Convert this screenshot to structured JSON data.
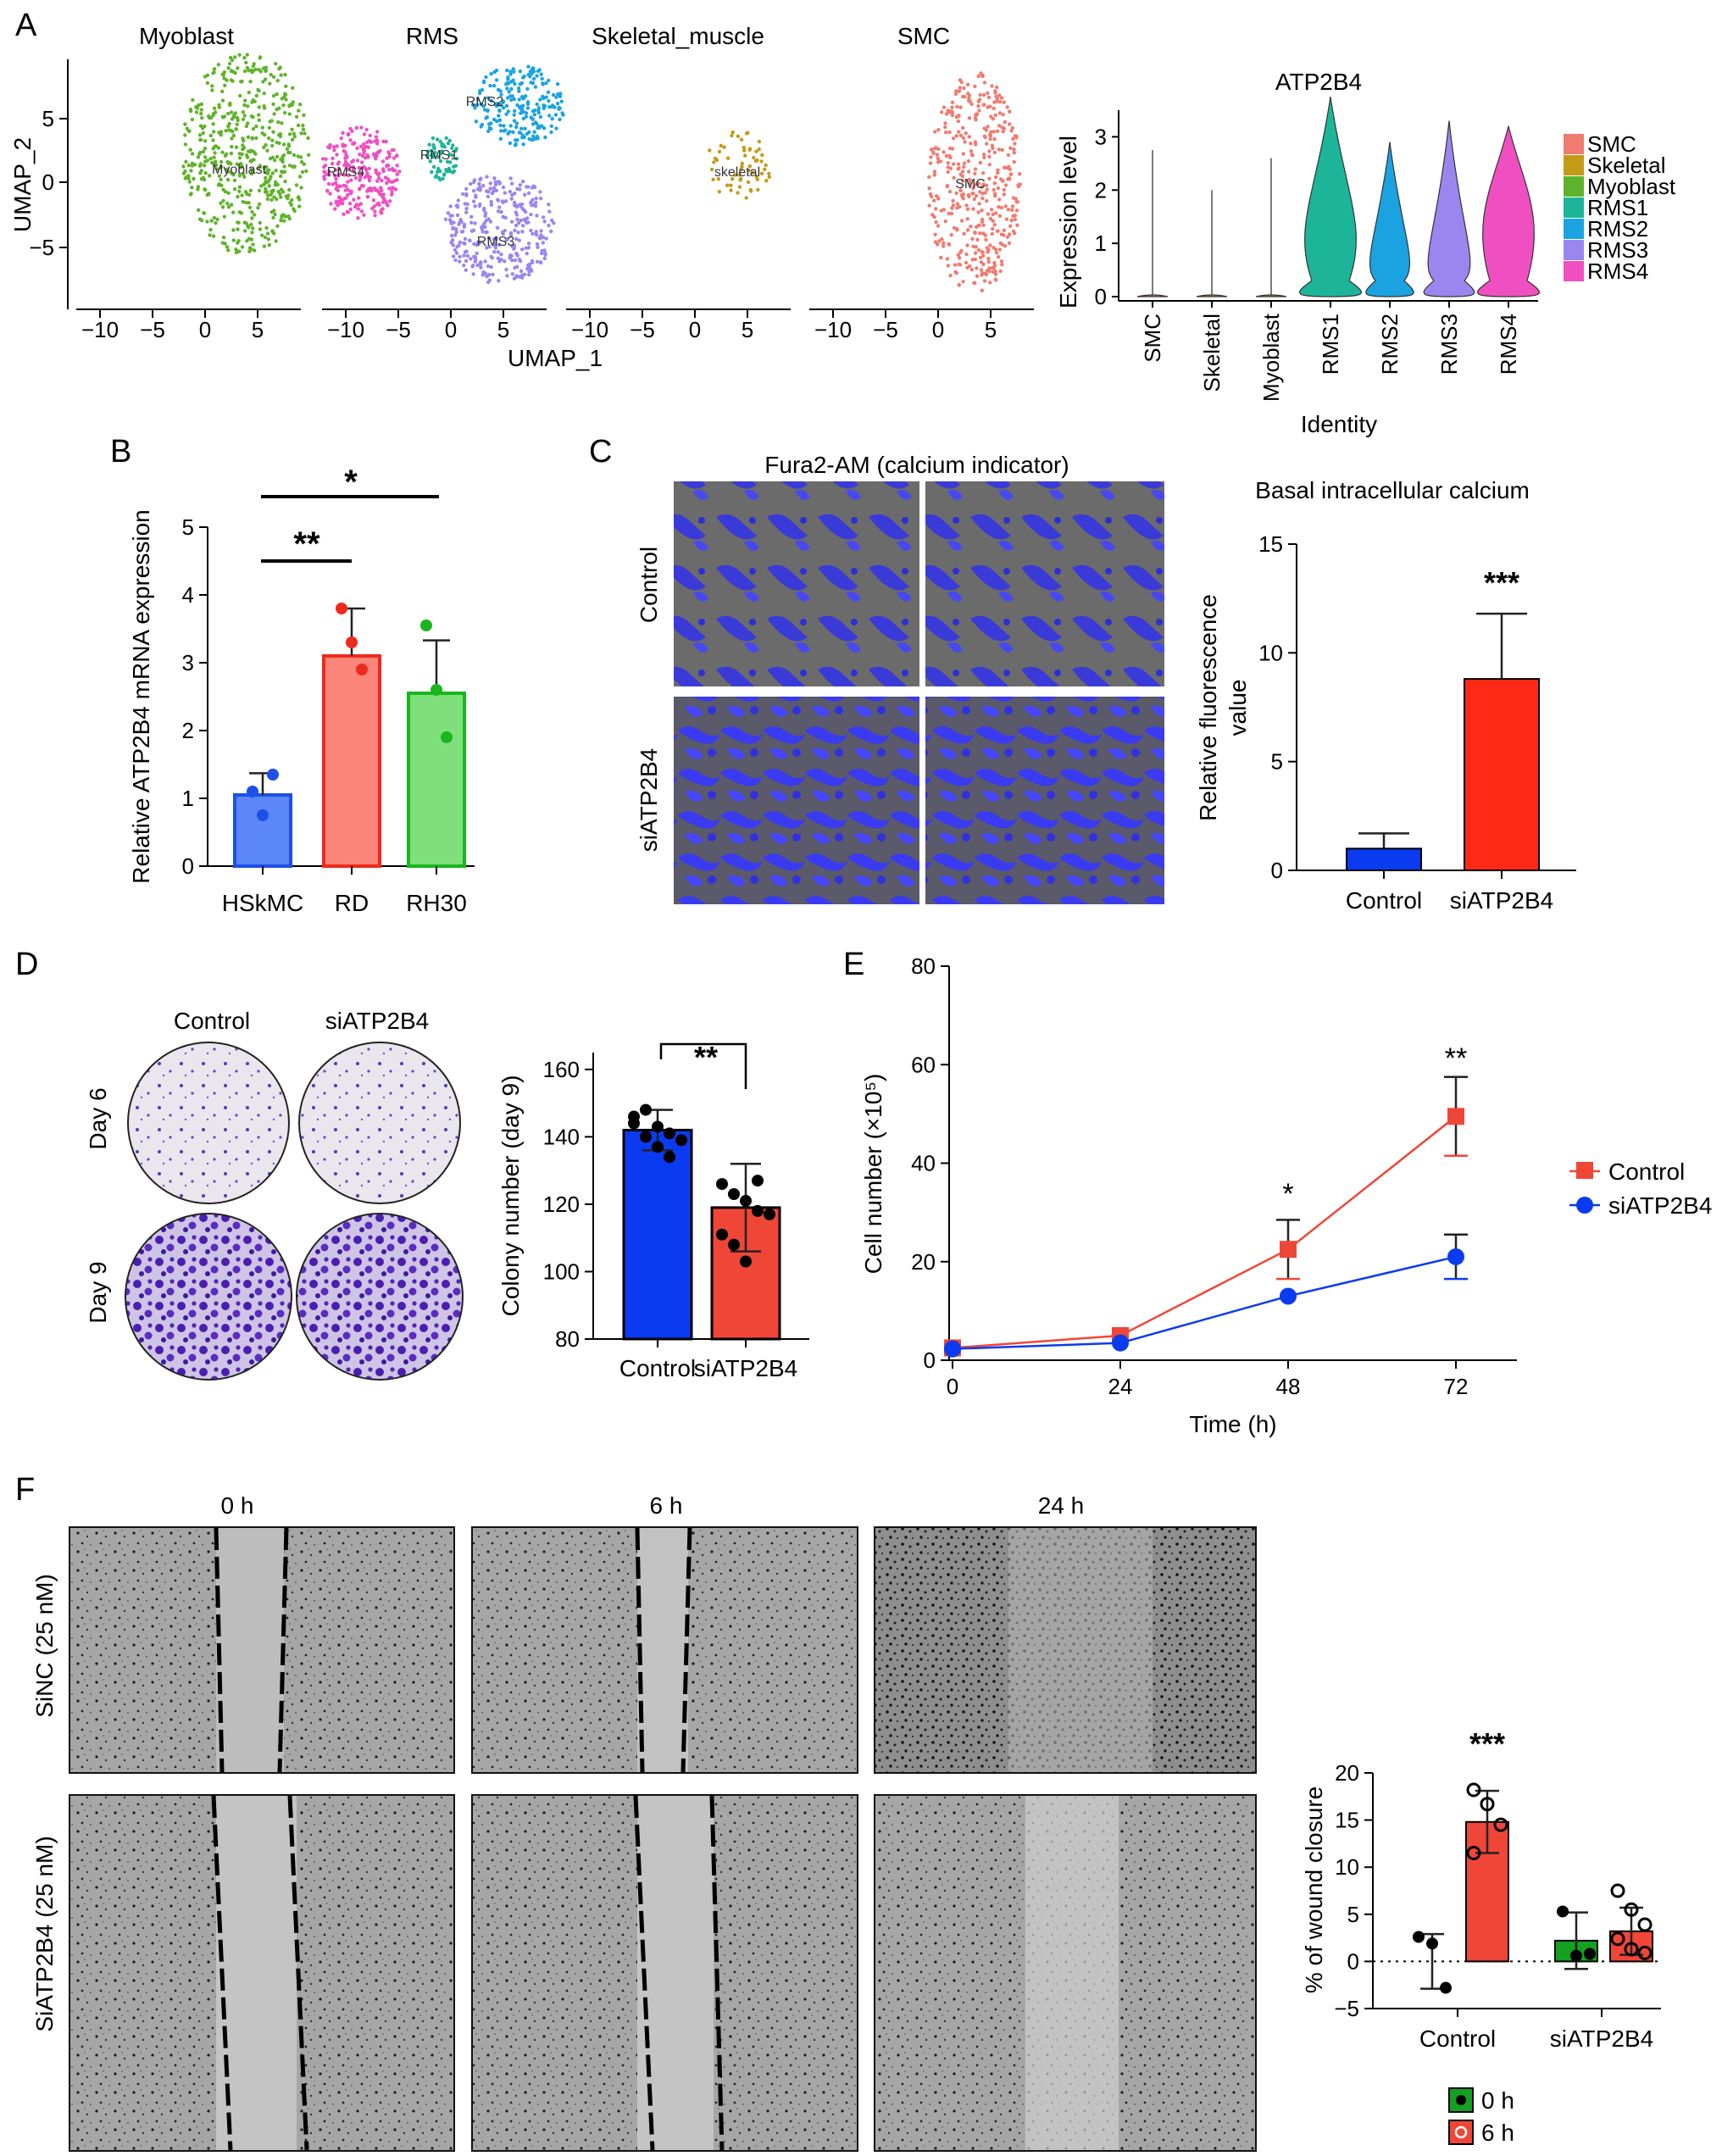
{
  "panel_letters": [
    "A",
    "B",
    "C",
    "D",
    "E",
    "F"
  ],
  "colors": {
    "Myoblast": "#5fb32a",
    "SMC": "#f07b70",
    "Skeletal": "#c49a17",
    "RMS1": "#1cb59a",
    "RMS2": "#1aa3e0",
    "RMS3": "#9a86ee",
    "RMS4": "#f04fc2",
    "blue": "#0a3bf0",
    "red": "#f04637",
    "bar_red": "#ff2a16",
    "green_bar": "#14a020",
    "hskmc": "#5b87f7",
    "rd": "#fa8578",
    "rh30": "#7fe07b",
    "fluor_blue": "#2222ee"
  },
  "panelA": {
    "umap": {
      "titles": [
        "Myoblast",
        "RMS",
        "Skeletal_muscle",
        "SMC"
      ],
      "cluster_labels": [
        "Myoblast",
        "RMS4",
        "RMS2",
        "RMS1",
        "RMS3",
        "skeletal",
        "SMC"
      ],
      "xlabel": "UMAP_1",
      "ylabel": "UMAP_2",
      "xticks": [
        "−10",
        "−5",
        "0",
        "5"
      ],
      "yticks": [
        "5",
        "0",
        "−5"
      ]
    },
    "violin_title": "ATP2B4",
    "violin_ylabel": "Expression level",
    "violin_xlabel": "Identity",
    "violin_yticks": [
      "3",
      "2",
      "1",
      "0"
    ],
    "violin_categories": [
      "SMC",
      "Skeletal",
      "Myoblast",
      "RMS1",
      "RMS2",
      "RMS3",
      "RMS4"
    ],
    "legend": [
      "SMC",
      "Skeletal",
      "Myoblast",
      "RMS1",
      "RMS2",
      "RMS3",
      "RMS4"
    ]
  },
  "panelC": {
    "image_title": "Fura2-AM (calcium indicator)",
    "row_labels": [
      "Control",
      "siATP2B4"
    ],
    "chart_title": "Basal intracellular calcium"
  },
  "panelD": {
    "col_labels": [
      "Control",
      "siATP2B4"
    ],
    "row_labels": [
      "Day 6",
      "Day 9"
    ]
  },
  "panelF": {
    "col_labels": [
      "0 h",
      "6 h",
      "24 h"
    ],
    "row_labels": [
      "SiNC (25 nM)",
      "SiATP2B4 (25 nM)"
    ]
  },
  "chart_data": [
    {
      "id": "B",
      "type": "bar",
      "categories": [
        "HSkMC",
        "RD",
        "RH30"
      ],
      "values": [
        1.05,
        3.1,
        2.55
      ],
      "errors": [
        0.32,
        0.7,
        0.78
      ],
      "points": [
        [
          1.1,
          0.75,
          1.35
        ],
        [
          3.8,
          3.3,
          2.9
        ],
        [
          3.55,
          2.6,
          1.9
        ]
      ],
      "ylabel": "Relative ATP2B4 mRNA expression",
      "ylim": [
        0,
        5
      ],
      "yticks": [
        "0",
        "1",
        "2",
        "3",
        "4",
        "5"
      ],
      "significance": [
        "**",
        "*"
      ]
    },
    {
      "id": "C",
      "type": "bar",
      "categories": [
        "Control",
        "siATP2B4"
      ],
      "values": [
        1.0,
        8.8
      ],
      "errors": [
        0.7,
        3.0
      ],
      "ylabel": "Relative fluorescence value",
      "ylim": [
        0,
        15
      ],
      "yticks": [
        "0",
        "5",
        "10",
        "15"
      ],
      "significance": [
        "***"
      ]
    },
    {
      "id": "D",
      "type": "bar",
      "categories": [
        "Control",
        "siATP2B4"
      ],
      "values": [
        142,
        119
      ],
      "errors": [
        6,
        13
      ],
      "points": [
        [
          146,
          148,
          143,
          141,
          139,
          144,
          140,
          137,
          134
        ],
        [
          126,
          123,
          121,
          118,
          117,
          111,
          108,
          103,
          127
        ]
      ],
      "ylabel": "Colony number (day 9)",
      "ylim": [
        80,
        165
      ],
      "yticks": [
        "80",
        "100",
        "120",
        "140",
        "160"
      ],
      "significance": [
        "**"
      ]
    },
    {
      "id": "E",
      "type": "line",
      "x": [
        "0",
        "24",
        "48",
        "72"
      ],
      "xlabel": "Time (h)",
      "ylabel": "Cell number (×10⁵)",
      "ylim": [
        0,
        80
      ],
      "yticks": [
        "0",
        "20",
        "40",
        "60",
        "80"
      ],
      "series": [
        {
          "name": "Control",
          "values": [
            2.5,
            5,
            22.5,
            49.5
          ],
          "errors": [
            0.5,
            0.8,
            6,
            8
          ]
        },
        {
          "name": "siATP2B4",
          "values": [
            2.3,
            3.5,
            13,
            21
          ],
          "errors": [
            0.3,
            0.5,
            0.8,
            4.5
          ]
        }
      ],
      "significance": [
        "*",
        "**"
      ]
    },
    {
      "id": "F",
      "type": "bar",
      "categories": [
        "Control",
        "siATP2B4"
      ],
      "series": [
        {
          "name": "0 h",
          "values": [
            0,
            2.2
          ],
          "errors": [
            2.9,
            3.0
          ],
          "points": [
            [
              2.6,
              1.9,
              -2.8
            ],
            [
              5.3,
              0.6,
              0.8
            ]
          ]
        },
        {
          "name": "6 h",
          "values": [
            14.8,
            3.2
          ],
          "errors": [
            3.3,
            2.5
          ],
          "points": [
            [
              18.2,
              16.7,
              14.5,
              11.5
            ],
            [
              7.5,
              5.5,
              3.9,
              2.4,
              1.3,
              0.9
            ]
          ]
        }
      ],
      "ylabel": "% of wound closure",
      "ylim": [
        -5,
        20
      ],
      "yticks": [
        "−5",
        "0",
        "5",
        "10",
        "15",
        "20"
      ],
      "significance": [
        "***"
      ]
    }
  ]
}
